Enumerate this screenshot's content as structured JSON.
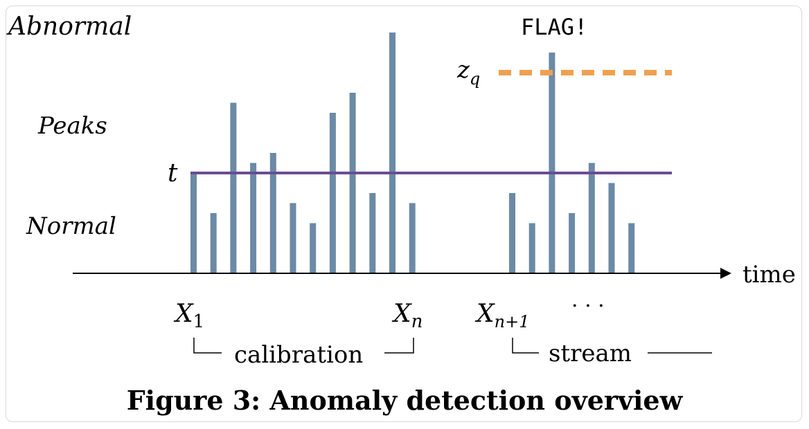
{
  "labels": {
    "abnormal": "Abnormal",
    "peaks": "Peaks",
    "normal": "Normal",
    "threshold": "t",
    "zq_main": "z",
    "zq_sub": "q",
    "flag": "FLAG!",
    "time": "time",
    "x1_main": "X",
    "x1_sub": "1",
    "xn_main": "X",
    "xn_sub": "n",
    "xn1_main": "X",
    "xn1_sub": "n+1",
    "ellipsis": "· · ·",
    "calibration": "calibration",
    "stream": "stream"
  },
  "caption": "Figure 3: Anomaly detection overview",
  "colors": {
    "bar": "#6b8aa6",
    "threshold_line": "#6a4c93",
    "zq_line": "#f0a050",
    "axis": "#000000"
  },
  "chart_data": {
    "type": "bar",
    "calibration_values": [
      1.0,
      0.6,
      1.7,
      1.1,
      1.2,
      0.7,
      0.5,
      1.6,
      1.8,
      0.8,
      2.4,
      0.7
    ],
    "stream_values": [
      0.8,
      0.5,
      2.2,
      0.6,
      1.1,
      0.9,
      0.5
    ],
    "threshold_t": 1.0,
    "threshold_zq": 2.0,
    "flagged_stream_index": 2
  }
}
